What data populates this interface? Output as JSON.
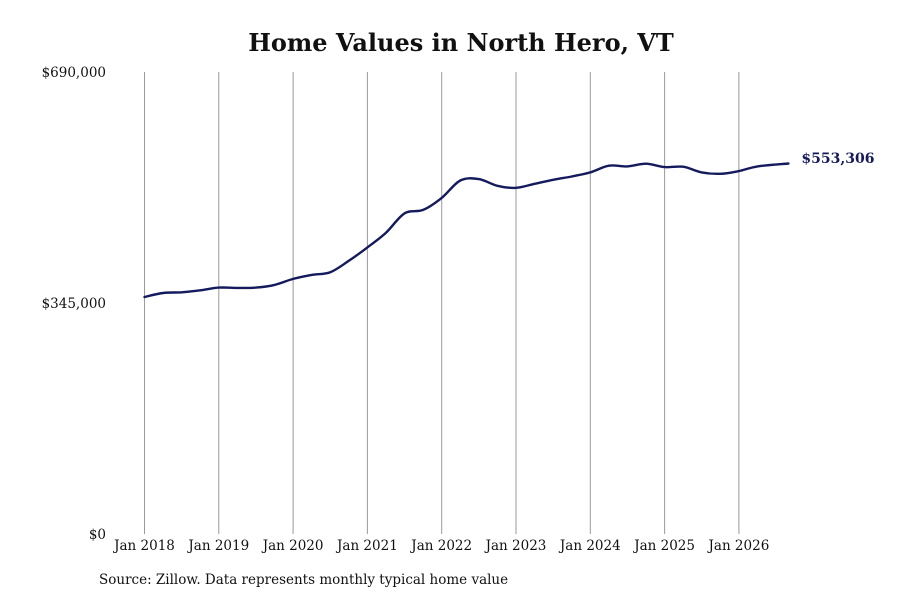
{
  "chart_data": {
    "type": "line",
    "title": "Home Values in North Hero, VT",
    "xlabel": "",
    "ylabel": "",
    "ylim": [
      0,
      690000
    ],
    "y_ticks": [
      "$0",
      "$345,000",
      "$690,000"
    ],
    "y_tick_values": [
      0,
      345000,
      690000
    ],
    "x_ticks": [
      "Jan 2018",
      "Jan 2019",
      "Jan 2020",
      "Jan 2021",
      "Jan 2022",
      "Jan 2023",
      "Jan 2024",
      "Jan 2025",
      "Jan 2026"
    ],
    "x_tick_dates": [
      "2018-01",
      "2019-01",
      "2020-01",
      "2021-01",
      "2022-01",
      "2023-01",
      "2024-01",
      "2025-01",
      "2026-01"
    ],
    "grid": "vertical",
    "line_color": "#141a5c",
    "end_label": "$553,306",
    "series": [
      {
        "points": [
          [
            "2018-01",
            354000
          ],
          [
            "2018-04",
            360000
          ],
          [
            "2018-07",
            361000
          ],
          [
            "2018-10",
            364000
          ],
          [
            "2019-01",
            368000
          ],
          [
            "2019-04",
            367500
          ],
          [
            "2019-07",
            368000
          ],
          [
            "2019-10",
            372000
          ],
          [
            "2020-01",
            381000
          ],
          [
            "2020-04",
            387000
          ],
          [
            "2020-07",
            391000
          ],
          [
            "2020-10",
            408000
          ],
          [
            "2021-01",
            428000
          ],
          [
            "2021-04",
            450000
          ],
          [
            "2021-07",
            479000
          ],
          [
            "2021-10",
            484000
          ],
          [
            "2022-01",
            502000
          ],
          [
            "2022-04",
            528000
          ],
          [
            "2022-07",
            530000
          ],
          [
            "2022-10",
            520000
          ],
          [
            "2023-01",
            517000
          ],
          [
            "2023-04",
            523000
          ],
          [
            "2023-07",
            529000
          ],
          [
            "2023-10",
            534000
          ],
          [
            "2024-01",
            540000
          ],
          [
            "2024-04",
            550000
          ],
          [
            "2024-07",
            549000
          ],
          [
            "2024-10",
            553000
          ],
          [
            "2025-01",
            548000
          ],
          [
            "2025-04",
            548500
          ],
          [
            "2025-07",
            540000
          ],
          [
            "2025-10",
            538000
          ],
          [
            "2026-01",
            542000
          ],
          [
            "2026-04",
            549000
          ],
          [
            "2026-09",
            553306
          ]
        ]
      }
    ]
  },
  "footer": {
    "source": "Source: Zillow. Data represents monthly typical home value"
  }
}
